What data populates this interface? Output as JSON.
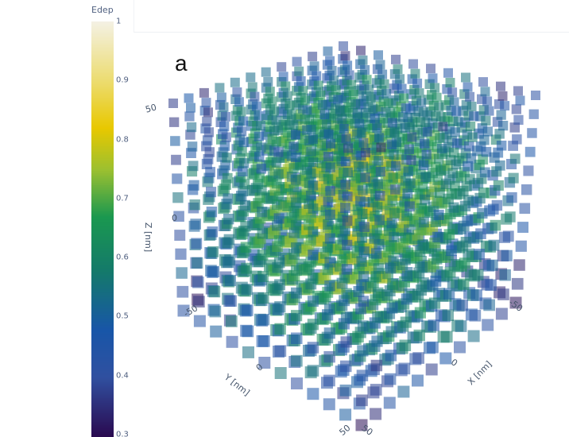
{
  "chart_data": {
    "type": "scatter3d",
    "panel_label": "a",
    "marker": "square",
    "colorbar": {
      "title": "Edep",
      "range": [
        0.3,
        1
      ],
      "ticks": [
        "1",
        "0.9",
        "0.8",
        "0.7",
        "0.6",
        "0.5",
        "0.4",
        "0.3"
      ],
      "colorscale": [
        [
          0.3,
          "#2a0a50"
        ],
        [
          0.4,
          "#3050a0"
        ],
        [
          0.48,
          "#1856a8"
        ],
        [
          0.58,
          "#147a6a"
        ],
        [
          0.67,
          "#1a9850"
        ],
        [
          0.75,
          "#9cc030"
        ],
        [
          0.82,
          "#e8c800"
        ],
        [
          0.9,
          "#ecdc70"
        ],
        [
          1.0,
          "#f4f1e4"
        ]
      ]
    },
    "axes": {
      "x": {
        "title": "X [nm]",
        "ticks": [
          "-50",
          "0",
          "50"
        ],
        "range": [
          -65,
          65
        ]
      },
      "y": {
        "title": "Y [nm]",
        "ticks": [
          "-50",
          "0",
          "50"
        ],
        "range": [
          -65,
          65
        ]
      },
      "z": {
        "title": "Z [nm]",
        "ticks": [
          "-50",
          "0",
          "50"
        ],
        "range": [
          -65,
          65
        ]
      }
    },
    "grid_points_per_axis": 12,
    "value_pattern": "higher Edep (0.75–0.9) toward the center, lower (0.35–0.5) toward the cube edges"
  }
}
